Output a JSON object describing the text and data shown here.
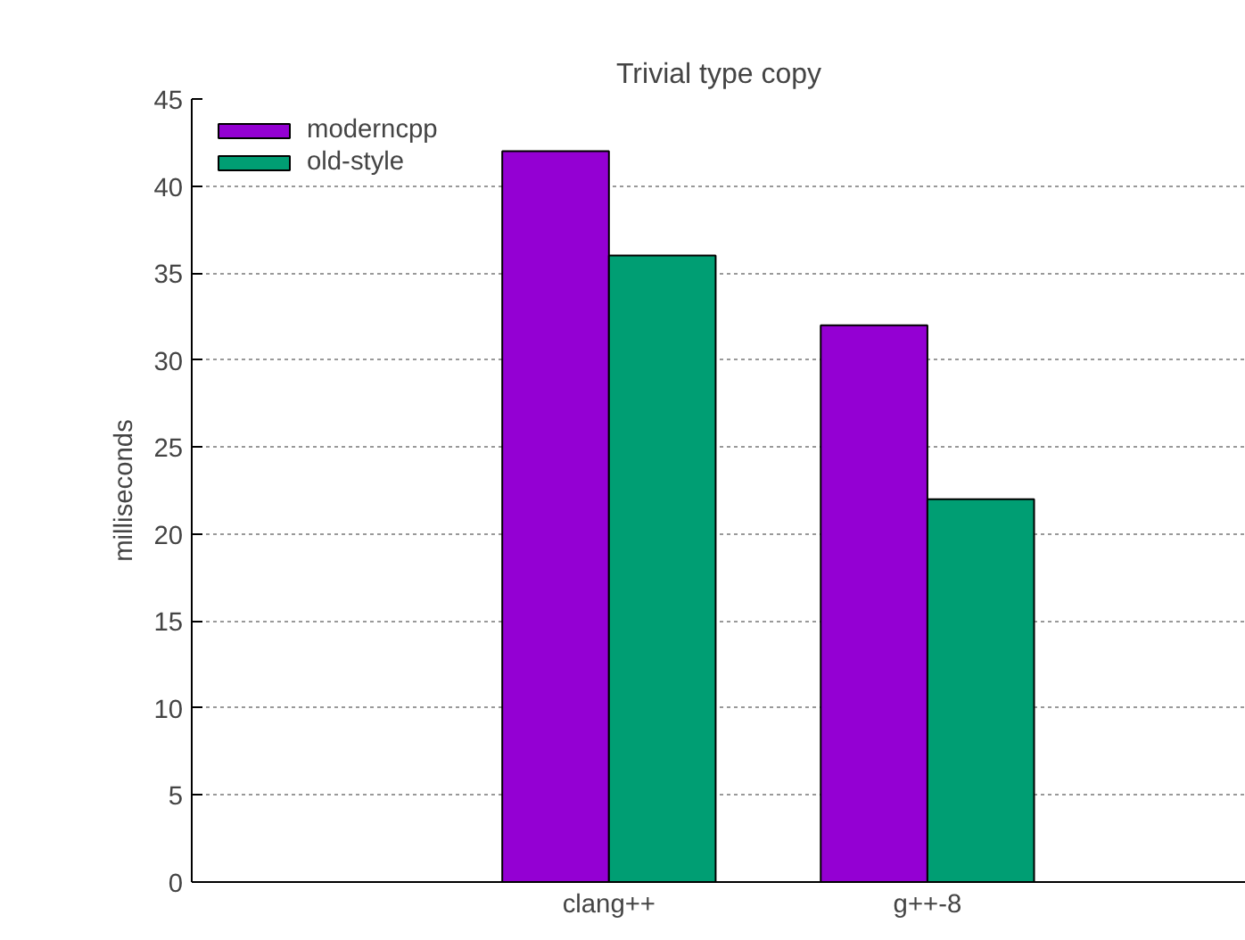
{
  "chart_data": {
    "type": "bar",
    "title": "Trivial type copy",
    "ylabel": "milliseconds",
    "categories": [
      "clang++",
      "g++-8"
    ],
    "series": [
      {
        "name": "moderncpp",
        "color": "#9400d3",
        "values": [
          42,
          32
        ]
      },
      {
        "name": "old-style",
        "color": "#009e73",
        "values": [
          36,
          22
        ]
      }
    ],
    "ylim": [
      0,
      45
    ],
    "yticks": [
      0,
      5,
      10,
      15,
      20,
      25,
      30,
      35,
      40,
      45
    ],
    "grid": "y",
    "legend": "top left"
  }
}
